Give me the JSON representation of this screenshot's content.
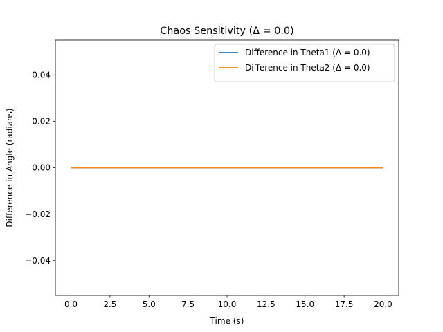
{
  "chart_data": {
    "type": "line",
    "title": "Chaos Sensitivity (Δ = 0.0)",
    "xlabel": "Time (s)",
    "ylabel": "Difference in Angle (radians)",
    "xlim": [
      -1.0,
      21.0
    ],
    "ylim": [
      -0.055,
      0.055
    ],
    "xticks": [
      0.0,
      2.5,
      5.0,
      7.5,
      10.0,
      12.5,
      15.0,
      17.5,
      20.0
    ],
    "xtick_labels": [
      "0.0",
      "2.5",
      "5.0",
      "7.5",
      "10.0",
      "12.5",
      "15.0",
      "17.5",
      "20.0"
    ],
    "yticks": [
      -0.04,
      -0.02,
      0.0,
      0.02,
      0.04
    ],
    "ytick_labels": [
      "−0.04",
      "−0.02",
      "0.00",
      "0.02",
      "0.04"
    ],
    "grid": false,
    "legend_position": "upper right",
    "series": [
      {
        "name": "Difference in Theta1 (Δ = 0.0)",
        "color": "#1f77b4",
        "x": [
          0,
          20
        ],
        "y": [
          0.0,
          0.0
        ]
      },
      {
        "name": "Difference in Theta2 (Δ = 0.0)",
        "color": "#ff7f0e",
        "x": [
          0,
          20
        ],
        "y": [
          0.0,
          0.0
        ]
      }
    ]
  }
}
